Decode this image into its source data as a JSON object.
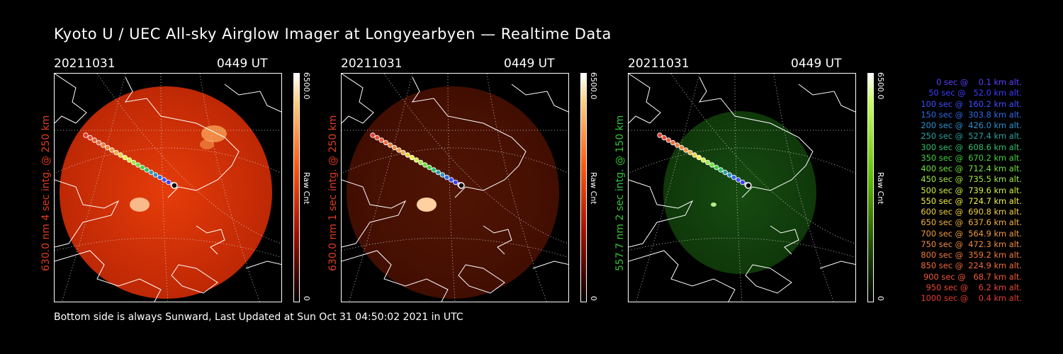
{
  "title": "Kyoto U / UEC All-sky Airglow Imager at Longyearbyen — Realtime Data",
  "panels": [
    {
      "date": "20211031",
      "time": "0449 UT",
      "ylabel": "630.0 nm 4 sec intg. @ 250 km",
      "ylabel_color": "#e03c1e",
      "cbar_max": "6500.0",
      "cbar_unit": "Raw Cnt",
      "cbar_min": "0",
      "colormap": "red",
      "brightness": 1.0
    },
    {
      "date": "20211031",
      "time": "0449 UT",
      "ylabel": "630.0 nm 1 sec intg. @ 250 km",
      "ylabel_color": "#e03c1e",
      "cbar_max": "6500.0",
      "cbar_unit": "Raw Cnt",
      "cbar_min": "0",
      "colormap": "red",
      "brightness": 0.35
    },
    {
      "date": "20211031",
      "time": "0449 UT",
      "ylabel": "557.7 nm 2 sec intg. @ 150 km",
      "ylabel_color": "#34c234",
      "cbar_max": "6500.0",
      "cbar_unit": "Raw Cnt",
      "cbar_min": "0",
      "colormap": "green",
      "brightness": 0.6
    }
  ],
  "footer": "Bottom side is always Sunward, Last Updated at Sun Oct 31 04:50:02 2021 in UTC",
  "legend": [
    {
      "text": "   0 sec @    0.1 km alt.",
      "color": "#5a3cff"
    },
    {
      "text": "  50 sec @   52.0 km alt.",
      "color": "#3c3cff"
    },
    {
      "text": " 100 sec @  160.2 km alt.",
      "color": "#3c50ff"
    },
    {
      "text": " 150 sec @  303.8 km alt.",
      "color": "#2f6ae8"
    },
    {
      "text": " 200 sec @  426.0 km alt.",
      "color": "#2c8fd0"
    },
    {
      "text": " 250 sec @  527.4 km alt.",
      "color": "#2ca0a0"
    },
    {
      "text": " 300 sec @  608.6 km alt.",
      "color": "#2cc070"
    },
    {
      "text": " 350 sec @  670.2 km alt.",
      "color": "#40d040"
    },
    {
      "text": " 400 sec @  712.4 km alt.",
      "color": "#70e040"
    },
    {
      "text": " 450 sec @  735.5 km alt.",
      "color": "#a0e840"
    },
    {
      "text": " 500 sec @  739.6 km alt.",
      "color": "#d0f040"
    },
    {
      "text": " 550 sec @  724.7 km alt.",
      "color": "#f0f040"
    },
    {
      "text": " 600 sec @  690.8 km alt.",
      "color": "#f0d040"
    },
    {
      "text": " 650 sec @  637.6 km alt.",
      "color": "#f0b040"
    },
    {
      "text": " 700 sec @  564.9 km alt.",
      "color": "#f09a40"
    },
    {
      "text": " 750 sec @  472.3 km alt.",
      "color": "#f08a40"
    },
    {
      "text": " 800 sec @  359.2 km alt.",
      "color": "#f07a3c"
    },
    {
      "text": " 850 sec @  224.9 km alt.",
      "color": "#f06a3a"
    },
    {
      "text": " 900 sec @   68.7 km alt.",
      "color": "#f05a38"
    },
    {
      "text": " 950 sec @    6.2 km alt.",
      "color": "#e84a34"
    },
    {
      "text": "1000 sec @    0.4 km alt.",
      "color": "#e03c30"
    }
  ]
}
